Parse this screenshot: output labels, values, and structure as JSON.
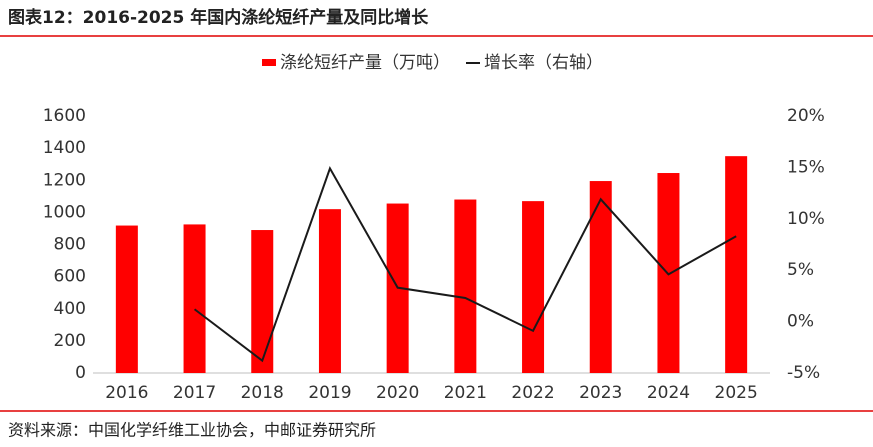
{
  "chart_data": {
    "type": "bar-line",
    "title": "图表12：2016-2025 年国内涤纶短纤产量及同比增长",
    "source": "资料来源：中国化学纤维工业协会，中邮证券研究所",
    "categories": [
      "2016",
      "2017",
      "2018",
      "2019",
      "2020",
      "2021",
      "2022",
      "2023",
      "2024",
      "2025"
    ],
    "series": [
      {
        "name": "涤纶短纤产量（万吨）",
        "type": "bar",
        "color": "#ff0000",
        "values": [
          918,
          925,
          890,
          1020,
          1055,
          1080,
          1070,
          1195,
          1245,
          1350
        ]
      },
      {
        "name": "增长率（右轴）",
        "type": "line",
        "axis": "y2",
        "color": "#1a1a1a",
        "values": [
          null,
          1.2,
          -3.8,
          14.9,
          3.3,
          2.3,
          -0.9,
          11.9,
          4.6,
          8.3
        ]
      }
    ],
    "ylim": [
      0,
      1600
    ],
    "yticks": [
      0,
      200,
      400,
      600,
      800,
      1000,
      1200,
      1400,
      1600
    ],
    "y2lim": [
      -5,
      20
    ],
    "y2ticks": [
      {
        "value": -5,
        "label": "-5%"
      },
      {
        "value": 0,
        "label": "0%"
      },
      {
        "value": 5,
        "label": "5%"
      },
      {
        "value": 10,
        "label": "10%"
      },
      {
        "value": 15,
        "label": "15%"
      },
      {
        "value": 20,
        "label": "20%"
      }
    ],
    "legend": "top",
    "grid": false
  }
}
